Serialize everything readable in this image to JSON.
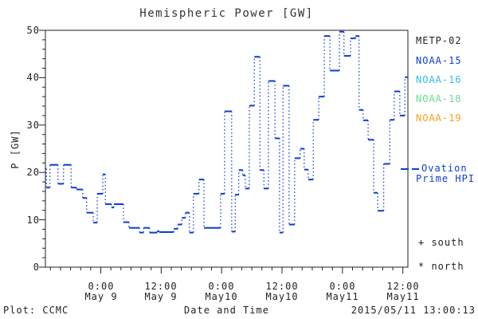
{
  "title": "Hemispheric Power [GW]",
  "axes": {
    "y": {
      "label": "P [GW]",
      "min": 0,
      "max": 50,
      "major_tick_step": 10,
      "minor_tick_step": 2,
      "tick_labels": [
        "0",
        "10",
        "20",
        "30",
        "40",
        "50"
      ]
    },
    "x": {
      "label": "Date and Time",
      "span_hours": 72,
      "minor_tick_step_hours": 2,
      "major_ticks": [
        {
          "hour": 11,
          "time": "0:00",
          "date": "May 9"
        },
        {
          "hour": 23,
          "time": "12:00",
          "date": "May 9"
        },
        {
          "hour": 35,
          "time": "0:00",
          "date": "May10"
        },
        {
          "hour": 47,
          "time": "12:00",
          "date": "May10"
        },
        {
          "hour": 59,
          "time": "0:00",
          "date": "May11"
        },
        {
          "hour": 71,
          "time": "12:00",
          "date": "May11"
        }
      ]
    }
  },
  "legend": {
    "satellites": [
      {
        "label": "METP-02",
        "color": "#222222"
      },
      {
        "label": "NOAA-15",
        "color": "#0c3dd6"
      },
      {
        "label": "NOAA-16",
        "color": "#33bbee"
      },
      {
        "label": "NOAA-18",
        "color": "#63dd8c"
      },
      {
        "label": "NOAA-19",
        "color": "#f5a21e"
      }
    ],
    "ovation": {
      "line1": "Ovation",
      "line2": "Prime HPI",
      "color": "#0c3dd6"
    },
    "south_marker": "+ south",
    "north_marker": "* north"
  },
  "footer": {
    "plot_credit": "Plot: CCMC",
    "timestamp": "2015/05/11 13:00:13"
  },
  "chart_data": {
    "type": "line",
    "subtype": "step-histogram, solid horizontal dashes with dotted vertical connectors",
    "title": "Hemispheric Power [GW]",
    "xlabel": "Date and Time",
    "ylabel": "P [GW]",
    "ylim": [
      0,
      50
    ],
    "x_unit": "hours along axis; axis spans 72 h ending at plot time 2015/05/11 13:00",
    "x_major_tick_hours": [
      11,
      23,
      35,
      47,
      59,
      71
    ],
    "x_end_hour": 72,
    "line_color": "#0c3dd6",
    "grid": false,
    "steps_hour_gw": [
      [
        0,
        20.8
      ],
      [
        0.2,
        16.8
      ],
      [
        0.9,
        21.6
      ],
      [
        2.5,
        17.6
      ],
      [
        3.6,
        21.6
      ],
      [
        5.1,
        16.8
      ],
      [
        6.2,
        16.4
      ],
      [
        7.4,
        14.6
      ],
      [
        8.2,
        11.5
      ],
      [
        9.5,
        9.4
      ],
      [
        10.3,
        15.5
      ],
      [
        11.4,
        19.6
      ],
      [
        11.9,
        13.3
      ],
      [
        13.1,
        12.6
      ],
      [
        13.6,
        13.3
      ],
      [
        15.5,
        9.5
      ],
      [
        16.6,
        8.3
      ],
      [
        18.7,
        7.3
      ],
      [
        19.5,
        8.3
      ],
      [
        20.7,
        7.3
      ],
      [
        22.2,
        7.6
      ],
      [
        22.6,
        7.4
      ],
      [
        25.5,
        8.1
      ],
      [
        26.3,
        9.0
      ],
      [
        27.1,
        10.4
      ],
      [
        27.8,
        11.5
      ],
      [
        28.6,
        7.3
      ],
      [
        29.4,
        15.5
      ],
      [
        30.5,
        18.5
      ],
      [
        31.5,
        8.3
      ],
      [
        34.8,
        15.5
      ],
      [
        35.6,
        32.9
      ],
      [
        37.0,
        7.5
      ],
      [
        37.7,
        15.3
      ],
      [
        38.4,
        20.5
      ],
      [
        39.2,
        19.4
      ],
      [
        39.7,
        16.6
      ],
      [
        40.5,
        34.1
      ],
      [
        41.5,
        44.4
      ],
      [
        42.6,
        20.5
      ],
      [
        43.4,
        16.6
      ],
      [
        44.3,
        39.3
      ],
      [
        45.6,
        27.2
      ],
      [
        46.5,
        7.3
      ],
      [
        47.2,
        38.3
      ],
      [
        48.4,
        9.0
      ],
      [
        49.5,
        23.0
      ],
      [
        50.6,
        25.0
      ],
      [
        51.4,
        20.6
      ],
      [
        52.2,
        18.5
      ],
      [
        53.2,
        31.1
      ],
      [
        54.3,
        36.0
      ],
      [
        55.4,
        48.8
      ],
      [
        56.5,
        41.5
      ],
      [
        58.4,
        49.7
      ],
      [
        59.3,
        44.6
      ],
      [
        60.6,
        48.3
      ],
      [
        61.6,
        48.8
      ],
      [
        62.3,
        33.2
      ],
      [
        63.1,
        31.0
      ],
      [
        64.1,
        26.9
      ],
      [
        65.2,
        15.7
      ],
      [
        66.0,
        11.9
      ],
      [
        67.2,
        21.8
      ],
      [
        68.4,
        31.1
      ],
      [
        69.3,
        37.1
      ],
      [
        70.4,
        32.0
      ],
      [
        71.4,
        40.1
      ]
    ]
  }
}
